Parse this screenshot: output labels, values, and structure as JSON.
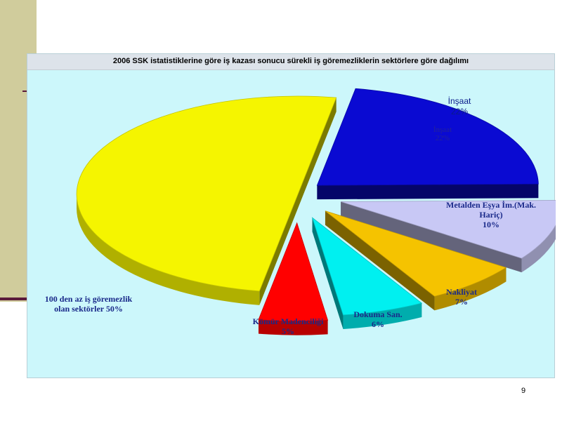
{
  "chart_data": {
    "type": "pie",
    "title": "2006 SSK istatistiklerine göre iş kazası sonucu sürekli iş göremezliklerin sektörlere göre dağılımı",
    "categories": [
      "İnşaat",
      "Metalden Eşya İm.(Mak. Hariç)",
      "Nakliyat",
      "Dokuma San.",
      "Kömür Madenciliği",
      "100 den az iş göremezlik olan sektörler"
    ],
    "values": [
      22,
      10,
      7,
      6,
      5,
      50
    ],
    "value_labels": [
      "22%",
      "10%",
      "7%",
      "6%",
      "5%",
      "50%"
    ],
    "colors": [
      "#0a0ad2",
      "#c8c8f5",
      "#f5c300",
      "#00f0f0",
      "#ff0000",
      "#f5f500"
    ],
    "exploded": true,
    "legend": "none"
  },
  "labels": {
    "insaat_name": "İnşaat",
    "insaat_value": "22%",
    "insaat_inner_name": "İnşaat",
    "insaat_inner_value": "22%",
    "metal_line1": "Metalden Eşya İm.(Mak.",
    "metal_line2": "Hariç)",
    "metal_value": "10%",
    "nakliyat_name": "Nakliyat",
    "nakliyat_value": "7%",
    "dokuma_name": "Dokuma San.",
    "dokuma_value": "6%",
    "komur_name": "Kömür Madenciliği",
    "komur_value": "5%",
    "rest_line1": "100 den az iş  göremezlik",
    "rest_line2": "olan sektörler 50%"
  },
  "page_number": "9"
}
